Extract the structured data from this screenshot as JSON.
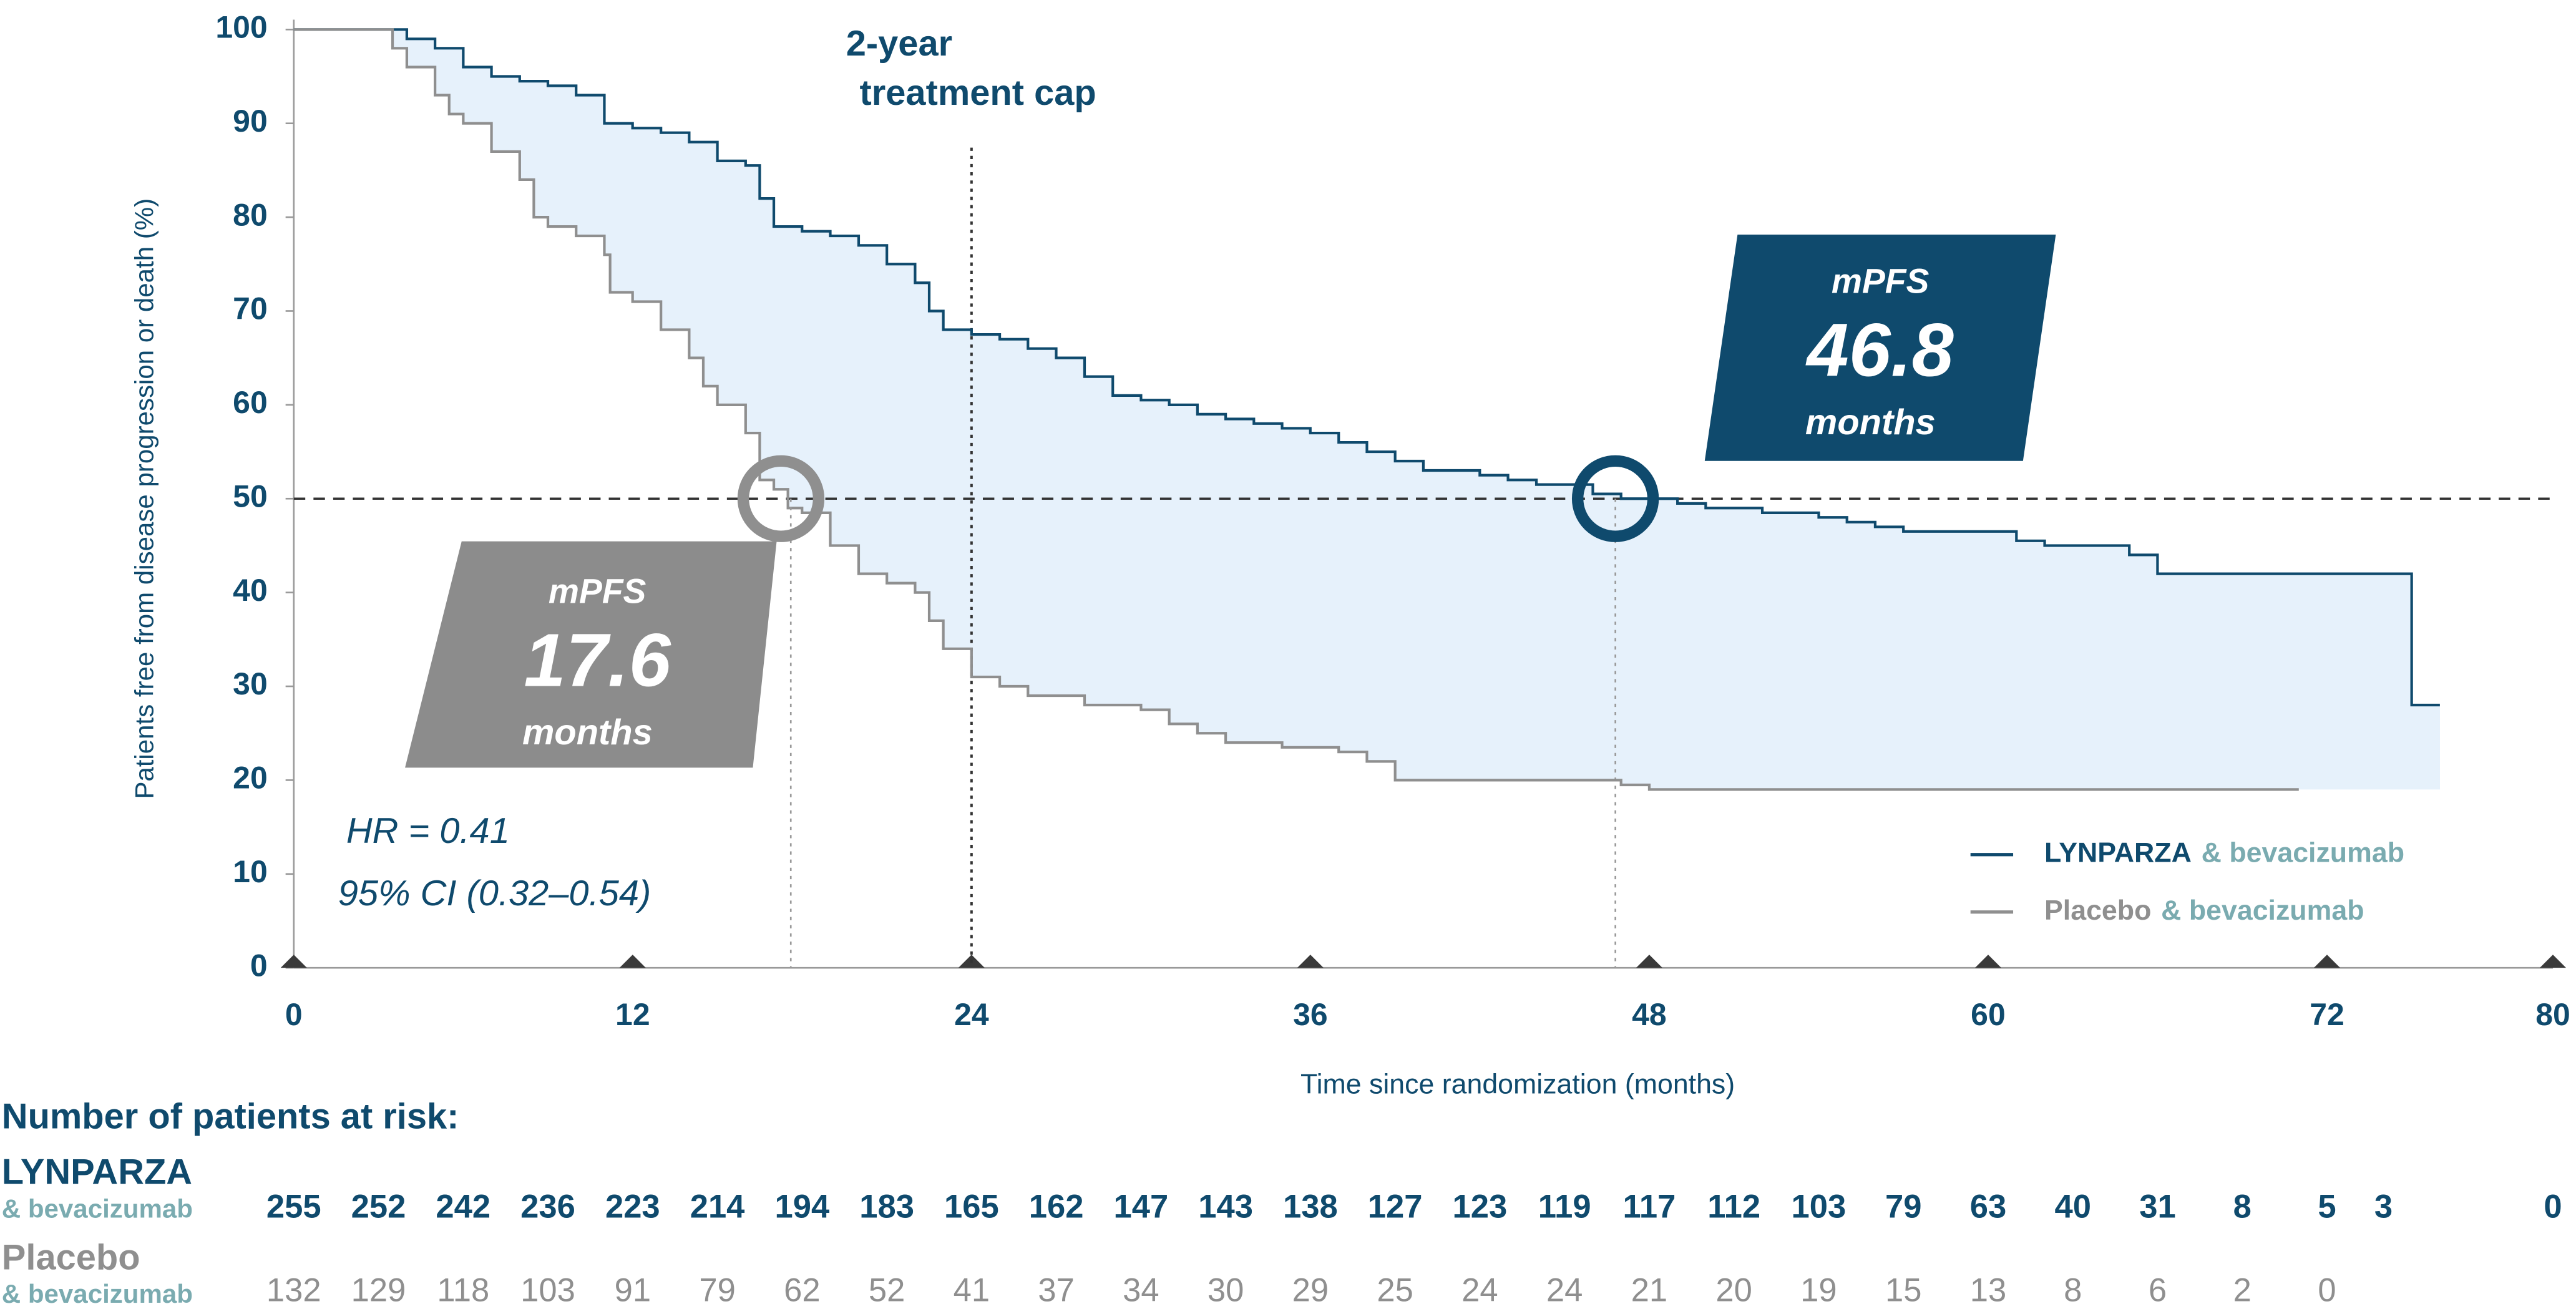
{
  "chart_data": {
    "type": "step",
    "y_label": "Patients free from disease progression or death (%)",
    "x_label": "Time since randomization (months)",
    "xlim": [
      0,
      80
    ],
    "xticks": [
      0,
      12,
      24,
      36,
      48,
      60,
      72,
      80
    ],
    "ylim": [
      0,
      100
    ],
    "yticks": [
      0,
      10,
      20,
      30,
      40,
      50,
      60,
      70,
      80,
      90,
      100
    ],
    "hline": 50,
    "cap": {
      "x": 24,
      "line1": "2-year",
      "line2": "treatment cap"
    },
    "combo": "& bevacizumab",
    "combo_color": "#7aabb0",
    "shade": "#e6f1fb",
    "series": [
      {
        "name": "LYNPARZA",
        "color": "#0f4a6d",
        "x": [
          0,
          3.7,
          4,
          5,
          6,
          7,
          8,
          9,
          10,
          11,
          12,
          13,
          14,
          15,
          16,
          16.5,
          17,
          18,
          19,
          20,
          21,
          22,
          22.5,
          23,
          24,
          25,
          26,
          27,
          28,
          29,
          30,
          31,
          32,
          33,
          34,
          35,
          36,
          37,
          38,
          39,
          40,
          42,
          43,
          44,
          46,
          47,
          48,
          49,
          50,
          52,
          54,
          55,
          56,
          57,
          60,
          61,
          62,
          63,
          65,
          66,
          74,
          75,
          76
        ],
        "values": [
          100,
          100,
          99,
          98,
          96,
          95,
          94.5,
          94,
          93,
          90,
          89.5,
          89,
          88,
          86,
          85.5,
          82,
          79,
          78.5,
          78,
          77,
          75,
          73,
          70,
          68,
          67.5,
          67,
          66,
          65,
          63,
          61,
          60.5,
          60,
          59,
          58.5,
          58,
          57.5,
          57,
          56,
          55,
          54,
          53,
          52.5,
          52,
          51.5,
          50.5,
          50,
          50,
          49.5,
          49,
          48.5,
          48,
          47.5,
          47,
          46.5,
          46.5,
          45.5,
          45,
          45,
          44,
          42,
          42,
          28,
          28
        ],
        "mpfs": {
          "label": "mPFS",
          "value": 46.8,
          "unit": "months"
        }
      },
      {
        "name": "Placebo",
        "color": "#8f8f8f",
        "x": [
          0,
          3.3,
          3.5,
          4,
          5,
          5.5,
          6,
          7,
          8,
          8.5,
          9,
          10,
          11,
          11.2,
          12,
          13,
          14,
          14.5,
          15,
          16,
          16.5,
          17,
          17.5,
          18,
          19,
          20,
          21,
          22,
          22.5,
          23,
          24,
          25,
          26,
          28,
          30,
          31,
          32,
          33,
          35,
          37,
          38,
          39,
          47,
          48,
          71
        ],
        "values": [
          100,
          100,
          98,
          96,
          93,
          91,
          90,
          87,
          84,
          80,
          79,
          78,
          76,
          72,
          71,
          68,
          65,
          62,
          60,
          57,
          52,
          51,
          49,
          48.5,
          45,
          42,
          41,
          40,
          37,
          34,
          31,
          30,
          29,
          28,
          27.5,
          26,
          25,
          24,
          23.5,
          23,
          22,
          20,
          19.5,
          19,
          19
        ],
        "mpfs": {
          "label": "mPFS",
          "value": 17.6,
          "unit": "months"
        }
      }
    ],
    "hr": "HR = 0.41",
    "ci": "95% CI (0.32–0.54)",
    "risk_table": {
      "title": "Number of patients at risk:",
      "times": [
        0,
        3,
        6,
        9,
        12,
        15,
        18,
        21,
        24,
        27,
        30,
        33,
        36,
        39,
        42,
        45,
        48,
        51,
        54,
        57,
        60,
        63,
        66,
        69,
        72,
        74,
        80
      ],
      "rows": [
        {
          "values": [
            255,
            252,
            242,
            236,
            223,
            214,
            194,
            183,
            165,
            162,
            147,
            143,
            138,
            127,
            123,
            119,
            117,
            112,
            103,
            79,
            63,
            40,
            31,
            8,
            5,
            3,
            0
          ]
        },
        {
          "values": [
            132,
            129,
            118,
            103,
            91,
            79,
            62,
            52,
            41,
            37,
            34,
            30,
            29,
            25,
            24,
            24,
            21,
            20,
            19,
            15,
            13,
            8,
            6,
            2,
            0,
            null,
            null
          ]
        }
      ]
    }
  }
}
